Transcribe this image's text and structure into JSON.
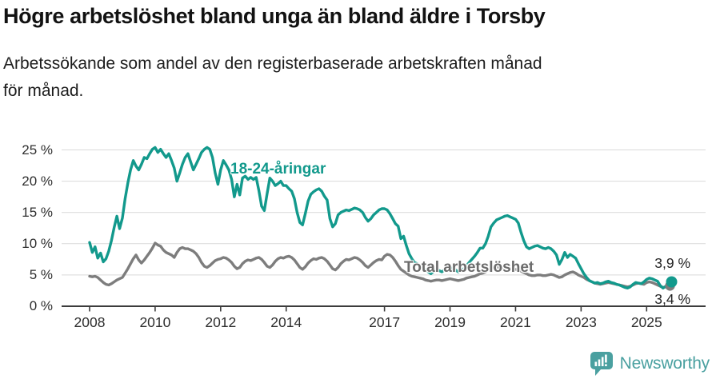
{
  "header": {
    "title": "Högre arbetslöshet bland unga än bland äldre i Torsby",
    "subtitle": "Arbetssökande som andel av den registerbaserade arbetskraften månad för månad."
  },
  "chart_data": {
    "type": "line",
    "title": "Högre arbetslöshet bland unga än bland äldre i Torsby",
    "x_start": "2008-01",
    "x_end": "2025-10",
    "x_unit": "month",
    "ylim": [
      0,
      26
    ],
    "grid": "horizontal",
    "legend_position": "inline-labels",
    "y_ticks": [
      {
        "value": 0,
        "label": "0 %"
      },
      {
        "value": 5,
        "label": "5 %"
      },
      {
        "value": 10,
        "label": "10 %"
      },
      {
        "value": 15,
        "label": "15 %"
      },
      {
        "value": 20,
        "label": "20 %"
      },
      {
        "value": 25,
        "label": "25 %"
      }
    ],
    "x_ticks": [
      {
        "year": 2008,
        "label": "2008"
      },
      {
        "year": 2010,
        "label": "2010"
      },
      {
        "year": 2012,
        "label": "2012"
      },
      {
        "year": 2014,
        "label": "2014"
      },
      {
        "year": 2017,
        "label": "2017"
      },
      {
        "year": 2019,
        "label": "2019"
      },
      {
        "year": 2021,
        "label": "2021"
      },
      {
        "year": 2023,
        "label": "2023"
      },
      {
        "year": 2025,
        "label": "2025"
      }
    ],
    "series": [
      {
        "name": "18-24-åringar",
        "color": "#12998c",
        "end_label": "3,9 %",
        "end_value": 3.9,
        "values": [
          10.2,
          8.6,
          9.5,
          7.7,
          8.5,
          7.1,
          7.6,
          8.8,
          10.5,
          12.6,
          14.4,
          12.4,
          14.1,
          17.2,
          19.7,
          21.8,
          23.3,
          22.4,
          21.8,
          22.7,
          23.8,
          23.6,
          24.4,
          25.1,
          25.4,
          24.6,
          25.1,
          24.4,
          23.8,
          24.4,
          23.3,
          22.1,
          20.0,
          21.3,
          22.7,
          23.8,
          24.4,
          23.1,
          21.8,
          22.7,
          23.6,
          24.6,
          25.1,
          25.4,
          25.1,
          23.8,
          21.3,
          19.5,
          21.8,
          23.3,
          22.6,
          21.8,
          20.3,
          17.5,
          19.5,
          17.8,
          20.5,
          20.8,
          20.3,
          20.6,
          20.3,
          20.6,
          18.5,
          16.0,
          15.3,
          18.0,
          20.5,
          20.0,
          19.3,
          19.6,
          20.0,
          19.3,
          19.3,
          18.8,
          18.4,
          17.2,
          15.0,
          13.4,
          13.0,
          14.8,
          16.8,
          17.9,
          18.3,
          18.6,
          18.8,
          18.4,
          17.6,
          17.0,
          14.0,
          12.7,
          13.2,
          14.6,
          15.0,
          15.2,
          15.4,
          15.3,
          15.5,
          15.7,
          15.6,
          15.4,
          15.0,
          14.2,
          13.6,
          14.0,
          14.6,
          15.0,
          15.4,
          15.6,
          15.6,
          15.4,
          14.8,
          14.0,
          13.2,
          12.8,
          10.8,
          11.2,
          9.7,
          8.4,
          7.6,
          7.0,
          6.8,
          6.5,
          6.2,
          5.8,
          5.5,
          5.2,
          5.6,
          5.9,
          5.7,
          5.5,
          5.8,
          6.0,
          6.2,
          6.0,
          5.8,
          5.5,
          5.7,
          6.0,
          6.5,
          7.0,
          7.5,
          8.0,
          8.6,
          9.3,
          9.3,
          10.0,
          11.2,
          12.7,
          13.3,
          13.8,
          14.0,
          14.2,
          14.4,
          14.5,
          14.3,
          14.1,
          13.9,
          13.3,
          11.8,
          10.5,
          9.5,
          9.2,
          9.4,
          9.6,
          9.7,
          9.5,
          9.3,
          9.2,
          9.4,
          9.2,
          8.8,
          8.2,
          6.7,
          7.5,
          8.6,
          7.8,
          8.3,
          8.0,
          7.7,
          6.8,
          6.0,
          5.2,
          4.6,
          4.1,
          3.9,
          3.7,
          3.8,
          3.6,
          3.7,
          3.9,
          4.0,
          3.8,
          3.7,
          3.5,
          3.4,
          3.2,
          3.0,
          2.9,
          3.1,
          3.5,
          3.8,
          3.7,
          3.6,
          3.9,
          4.3,
          4.5,
          4.4,
          4.2,
          4.0,
          3.3,
          2.9,
          3.2,
          3.6,
          3.9
        ]
      },
      {
        "name": "Total arbetslöshet",
        "color": "#7d7d7d",
        "end_label": "3,4 %",
        "end_value": 3.4,
        "values": [
          4.8,
          4.7,
          4.8,
          4.6,
          4.2,
          3.8,
          3.5,
          3.4,
          3.6,
          3.9,
          4.2,
          4.4,
          4.6,
          5.3,
          6.0,
          6.8,
          7.6,
          8.2,
          7.4,
          6.9,
          7.4,
          8.0,
          8.6,
          9.3,
          10.1,
          9.8,
          9.6,
          9.0,
          8.6,
          8.4,
          8.2,
          7.8,
          8.6,
          9.2,
          9.4,
          9.2,
          9.2,
          9.0,
          8.8,
          8.4,
          7.8,
          7.0,
          6.4,
          6.2,
          6.5,
          6.9,
          7.3,
          7.5,
          7.6,
          7.8,
          7.7,
          7.4,
          7.0,
          6.4,
          6.0,
          6.2,
          6.8,
          7.2,
          7.4,
          7.3,
          7.5,
          7.7,
          7.8,
          7.5,
          7.0,
          6.4,
          6.2,
          6.6,
          7.2,
          7.6,
          7.8,
          7.7,
          7.9,
          8.0,
          7.8,
          7.4,
          6.8,
          6.2,
          5.9,
          6.3,
          6.9,
          7.3,
          7.6,
          7.5,
          7.7,
          7.8,
          7.6,
          7.2,
          6.6,
          6.0,
          5.8,
          6.2,
          6.8,
          7.2,
          7.5,
          7.4,
          7.6,
          7.8,
          7.7,
          7.4,
          7.0,
          6.5,
          6.2,
          6.6,
          7.0,
          7.3,
          7.5,
          7.4,
          8.0,
          8.3,
          8.2,
          7.8,
          7.2,
          6.5,
          5.9,
          5.6,
          5.3,
          5.0,
          4.8,
          4.7,
          4.6,
          4.5,
          4.4,
          4.2,
          4.1,
          4.0,
          4.1,
          4.2,
          4.2,
          4.1,
          4.2,
          4.3,
          4.4,
          4.3,
          4.2,
          4.1,
          4.2,
          4.3,
          4.5,
          4.6,
          4.7,
          4.8,
          5.0,
          5.2,
          5.3,
          5.5,
          5.8,
          6.1,
          6.3,
          6.3,
          6.2,
          6.2,
          6.1,
          6.1,
          6.0,
          6.0,
          5.9,
          5.8,
          5.6,
          5.4,
          5.2,
          5.0,
          4.9,
          4.9,
          5.0,
          5.0,
          4.9,
          4.9,
          5.0,
          5.1,
          5.0,
          4.8,
          4.6,
          4.7,
          5.0,
          5.2,
          5.4,
          5.5,
          5.3,
          5.0,
          4.8,
          4.6,
          4.3,
          4.1,
          3.9,
          3.7,
          3.6,
          3.5,
          3.6,
          3.7,
          3.8,
          3.7,
          3.6,
          3.5,
          3.4,
          3.3,
          3.2,
          3.1,
          3.2,
          3.4,
          3.6,
          3.7,
          3.6,
          3.5,
          3.8,
          3.9,
          3.8,
          3.6,
          3.4,
          3.2,
          3.0,
          3.1,
          3.3,
          3.4
        ]
      }
    ],
    "colors": {
      "grid": "#d9d9d9",
      "axis": "#3c3c3c",
      "tick_label": "#2e2e2e"
    }
  },
  "footer": {
    "brand": "Newsworthy",
    "brand_color": "#4aa0a0"
  }
}
